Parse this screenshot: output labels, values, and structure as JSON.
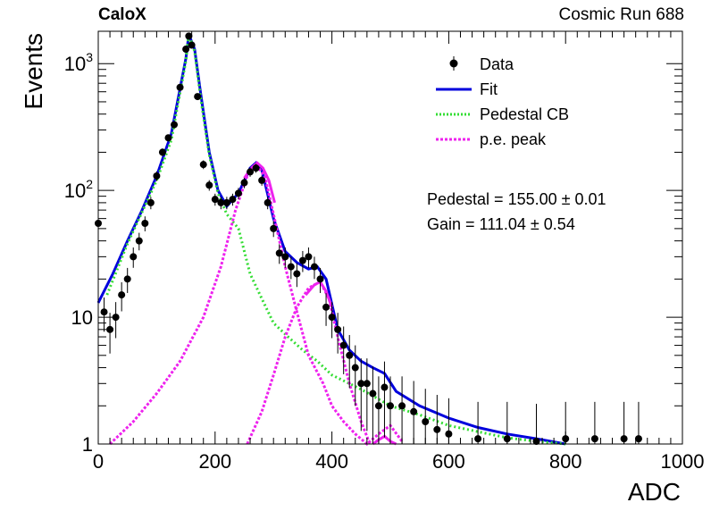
{
  "header": {
    "brand": "CaloX",
    "run": "Cosmic Run 688"
  },
  "stats": {
    "pedestal": "Pedestal = 155.00 ± 0.01",
    "gain": "Gain = 111.04 ± 0.54"
  },
  "chart_data": {
    "type": "scatter",
    "xlabel": "ADC",
    "ylabel": "Events",
    "xlim": [
      0,
      1000
    ],
    "ylim": [
      1,
      1800
    ],
    "yscale": "log",
    "grid": false,
    "legend_position": "top-right",
    "x_ticks": [
      0,
      200,
      400,
      600,
      800,
      1000
    ],
    "y_ticks": [
      {
        "value": 1,
        "label": "1"
      },
      {
        "value": 10,
        "label": "10"
      },
      {
        "value": 100,
        "label": "10^2"
      },
      {
        "value": 1000,
        "label": "10^3"
      }
    ],
    "series": [
      {
        "name": "Data",
        "style": "points",
        "color": "#000000",
        "x": [
          0,
          10,
          20,
          30,
          40,
          50,
          60,
          70,
          80,
          90,
          100,
          110,
          120,
          130,
          140,
          150,
          155,
          160,
          170,
          180,
          190,
          200,
          210,
          220,
          230,
          240,
          250,
          260,
          270,
          280,
          290,
          300,
          310,
          320,
          330,
          340,
          350,
          360,
          370,
          380,
          390,
          400,
          410,
          420,
          430,
          440,
          450,
          460,
          470,
          480,
          490,
          500,
          520,
          540,
          560,
          580,
          600,
          650,
          700,
          750,
          800,
          850,
          900,
          925
        ],
        "y": [
          55,
          11,
          8,
          10,
          15,
          20,
          30,
          40,
          55,
          80,
          130,
          200,
          260,
          330,
          650,
          1300,
          1650,
          1400,
          550,
          160,
          110,
          85,
          80,
          80,
          85,
          95,
          115,
          140,
          150,
          120,
          80,
          50,
          32,
          30,
          25,
          22,
          28,
          30,
          25,
          20,
          12,
          10,
          8,
          6,
          5,
          4,
          3,
          3,
          2.5,
          2,
          2.8,
          2,
          2,
          1.8,
          1.5,
          1.3,
          1.2,
          1.1,
          1.1,
          1.05,
          1.1,
          1.1,
          1.1,
          1.1
        ]
      },
      {
        "name": "Fit",
        "style": "line",
        "color": "#0000dd",
        "x": [
          0,
          25,
          50,
          75,
          100,
          125,
          150,
          155,
          165,
          175,
          190,
          205,
          220,
          240,
          260,
          270,
          280,
          300,
          320,
          340,
          360,
          375,
          390,
          410,
          430,
          450,
          470,
          490,
          510,
          550,
          600,
          650,
          700,
          750,
          800
        ],
        "y": [
          13,
          22,
          40,
          70,
          130,
          280,
          1100,
          1700,
          1300,
          600,
          200,
          100,
          75,
          95,
          150,
          165,
          145,
          60,
          33,
          27,
          24,
          25,
          20,
          8,
          5.5,
          4.5,
          4,
          3.6,
          2.6,
          2,
          1.6,
          1.35,
          1.2,
          1.1,
          1
        ]
      },
      {
        "name": "Pedestal CB",
        "style": "dotted",
        "color": "#33dd33",
        "x": [
          15,
          50,
          100,
          125,
          150,
          155,
          165,
          175,
          190,
          205,
          220,
          240,
          260,
          280,
          300,
          325,
          350,
          375,
          400,
          450,
          500,
          550,
          600,
          650,
          700,
          750,
          800
        ],
        "y": [
          15,
          38,
          120,
          250,
          1050,
          1700,
          1250,
          550,
          190,
          95,
          65,
          50,
          22,
          14,
          9,
          7,
          5.5,
          4.5,
          3.5,
          2.7,
          2,
          1.7,
          1.4,
          1.25,
          1.12,
          1.05,
          1
        ]
      },
      {
        "name": "p.e. peak",
        "style": "dotted",
        "color": "#ee22ee",
        "x": [
          20,
          60,
          100,
          140,
          180,
          210,
          235,
          255,
          270,
          285,
          300,
          320,
          340,
          360,
          385,
          400,
          420,
          440,
          460,
          480,
          500,
          520
        ],
        "y": [
          1,
          1.5,
          2.5,
          4.5,
          10,
          25,
          70,
          130,
          160,
          130,
          65,
          25,
          11,
          5,
          3,
          2,
          1.5,
          1.2,
          1,
          1.2,
          1.4,
          1.05
        ]
      },
      {
        "name": "p.e. peak",
        "style": "dotted",
        "color": "#ee22ee",
        "x": [
          255,
          280,
          300,
          320,
          340,
          360,
          380,
          395,
          410,
          430,
          450,
          465
        ],
        "y": [
          1,
          1.8,
          3.5,
          7,
          12,
          17,
          19,
          14,
          7,
          3,
          1.5,
          1
        ]
      },
      {
        "name": "p.e. peak",
        "style": "line",
        "color": "#ee22ee",
        "x": [
          250,
          262,
          272,
          282,
          292,
          302
        ],
        "y": [
          125,
          150,
          165,
          150,
          120,
          80
        ]
      },
      {
        "name": "p.e. peak",
        "style": "line",
        "color": "#ee22ee",
        "x": [
          355,
          370,
          380,
          390,
          400
        ],
        "y": [
          15,
          18,
          19,
          16,
          12
        ]
      },
      {
        "name": "p.e. peak",
        "style": "line",
        "color": "#ee22ee",
        "x": [
          470,
          480,
          490,
          500,
          510
        ],
        "y": [
          1,
          1.08,
          1.15,
          1.05,
          1
        ]
      }
    ]
  }
}
